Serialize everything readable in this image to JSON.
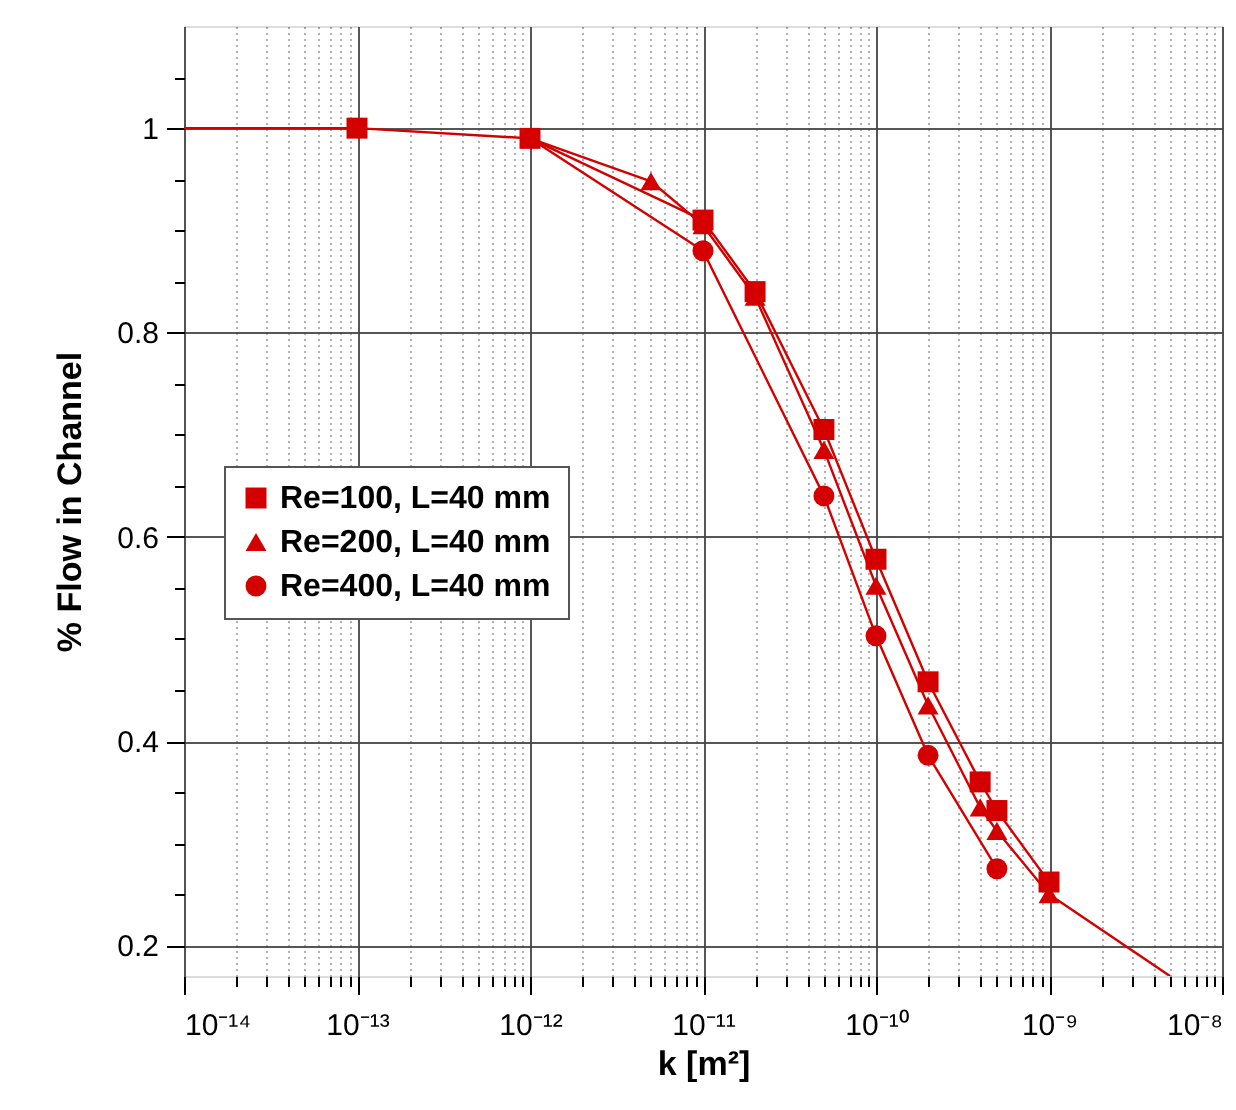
{
  "chart_data": {
    "type": "line",
    "xlabel": "k [m²]",
    "ylabel": "% Flow in Channel",
    "log": "x",
    "grid": true,
    "legend": "left",
    "line_style": "solid",
    "xlim": [
      1e-14,
      1e-08
    ],
    "ylim": [
      0.17,
      1.1
    ],
    "xticks": [
      {
        "value": 1e-14,
        "label": "10⁻¹⁴"
      },
      {
        "value": 2e-14,
        "label": null
      },
      {
        "value": 3e-14,
        "label": null
      },
      {
        "value": 4e-14,
        "label": null
      },
      {
        "value": 5e-14,
        "label": null
      },
      {
        "value": 6e-14,
        "label": null
      },
      {
        "value": 7e-14,
        "label": null
      },
      {
        "value": 8e-14,
        "label": null
      },
      {
        "value": 9e-14,
        "label": null
      },
      {
        "value": 1e-13,
        "label": "10⁻¹³"
      },
      {
        "value": 2e-13,
        "label": null
      },
      {
        "value": 3e-13,
        "label": null
      },
      {
        "value": 4e-13,
        "label": null
      },
      {
        "value": 5e-13,
        "label": null
      },
      {
        "value": 6e-13,
        "label": null
      },
      {
        "value": 7e-13,
        "label": null
      },
      {
        "value": 8e-13,
        "label": null
      },
      {
        "value": 9e-13,
        "label": null
      },
      {
        "value": 1e-12,
        "label": "10⁻¹²"
      },
      {
        "value": 2e-12,
        "label": null
      },
      {
        "value": 3e-12,
        "label": null
      },
      {
        "value": 4e-12,
        "label": null
      },
      {
        "value": 5e-12,
        "label": null
      },
      {
        "value": 6e-12,
        "label": null
      },
      {
        "value": 7e-12,
        "label": null
      },
      {
        "value": 8e-12,
        "label": null
      },
      {
        "value": 9e-12,
        "label": null
      },
      {
        "value": 1e-11,
        "label": "10⁻¹¹"
      },
      {
        "value": 2e-11,
        "label": null
      },
      {
        "value": 3e-11,
        "label": null
      },
      {
        "value": 4e-11,
        "label": null
      },
      {
        "value": 5e-11,
        "label": null
      },
      {
        "value": 6e-11,
        "label": null
      },
      {
        "value": 7e-11,
        "label": null
      },
      {
        "value": 8e-11,
        "label": null
      },
      {
        "value": 9e-11,
        "label": null
      },
      {
        "value": 1e-10,
        "label": "10⁻¹⁰"
      },
      {
        "value": 2e-10,
        "label": null
      },
      {
        "value": 3e-10,
        "label": null
      },
      {
        "value": 4e-10,
        "label": null
      },
      {
        "value": 5e-10,
        "label": null
      },
      {
        "value": 6e-10,
        "label": null
      },
      {
        "value": 7e-10,
        "label": null
      },
      {
        "value": 8e-10,
        "label": null
      },
      {
        "value": 9e-10,
        "label": null
      },
      {
        "value": 1e-09,
        "label": "10⁻⁹"
      },
      {
        "value": 2e-09,
        "label": null
      },
      {
        "value": 3e-09,
        "label": null
      },
      {
        "value": 4e-09,
        "label": null
      },
      {
        "value": 5e-09,
        "label": null
      },
      {
        "value": 6e-09,
        "label": null
      },
      {
        "value": 7e-09,
        "label": null
      },
      {
        "value": 8e-09,
        "label": null
      },
      {
        "value": 9e-09,
        "label": null
      },
      {
        "value": 1e-08,
        "label": "10⁻⁸"
      }
    ],
    "yticks": [
      0.2,
      {
        "value": 0.25,
        "label": null
      },
      {
        "value": 0.3,
        "label": null
      },
      {
        "value": 0.35,
        "label": null
      },
      0.4,
      {
        "value": 0.45,
        "label": null
      },
      {
        "value": 0.5,
        "label": null
      },
      {
        "value": 0.55,
        "label": null
      },
      0.6,
      {
        "value": 0.65,
        "label": null
      },
      {
        "value": 0.7,
        "label": null
      },
      {
        "value": 0.75,
        "label": null
      },
      0.8,
      {
        "value": 0.85,
        "label": null
      },
      {
        "value": 0.9,
        "label": null
      },
      {
        "value": 0.95,
        "label": null
      },
      1,
      {
        "value": 1.05,
        "label": null
      }
    ],
    "series": [
      {
        "name": "Re=100, L=40 mm",
        "color": "#d40000",
        "marker": "square",
        "x": [
          1e-13,
          1e-12,
          1e-11,
          2e-11,
          5e-11,
          1e-10,
          2e-10,
          4e-10,
          5e-10,
          1e-09
        ],
        "values": [
          1.0,
          0.99,
          0.91,
          0.84,
          0.705,
          0.578,
          0.458,
          0.36,
          0.332,
          0.262
        ]
      },
      {
        "name": "Re=200, L=40 mm",
        "color": "#d40000",
        "marker": "triangle",
        "x": [
          5e-12,
          1e-11,
          2e-11,
          5e-11,
          1e-10,
          2e-10,
          4e-10,
          5e-10,
          1e-09
        ],
        "values": [
          0.948,
          0.905,
          0.835,
          0.685,
          0.552,
          0.435,
          0.335,
          0.312,
          0.25
        ]
      },
      {
        "name": "Re=400, L=40 mm",
        "color": "#d40000",
        "marker": "circle",
        "x": [
          1e-11,
          5e-11,
          1e-10,
          2e-10,
          5e-10
        ],
        "values": [
          0.88,
          0.64,
          0.503,
          0.386,
          0.275
        ]
      },
      {
        "color": "#d40000",
        "marker": "none",
        "x": [
          1e-14,
          1e-13
        ],
        "values": [
          1.0,
          1.0
        ]
      },
      {
        "color": "#d40000",
        "marker": "none",
        "x": [
          1e-12,
          5e-12
        ],
        "values": [
          0.99,
          0.948
        ]
      },
      {
        "color": "#d40000",
        "marker": "none",
        "x": [
          1e-12,
          1e-11
        ],
        "values": [
          0.99,
          0.88
        ]
      },
      {
        "color": "#d40000",
        "marker": "none",
        "x": [
          1e-09,
          5e-09
        ],
        "values": [
          0.25,
          0.17
        ]
      }
    ]
  }
}
